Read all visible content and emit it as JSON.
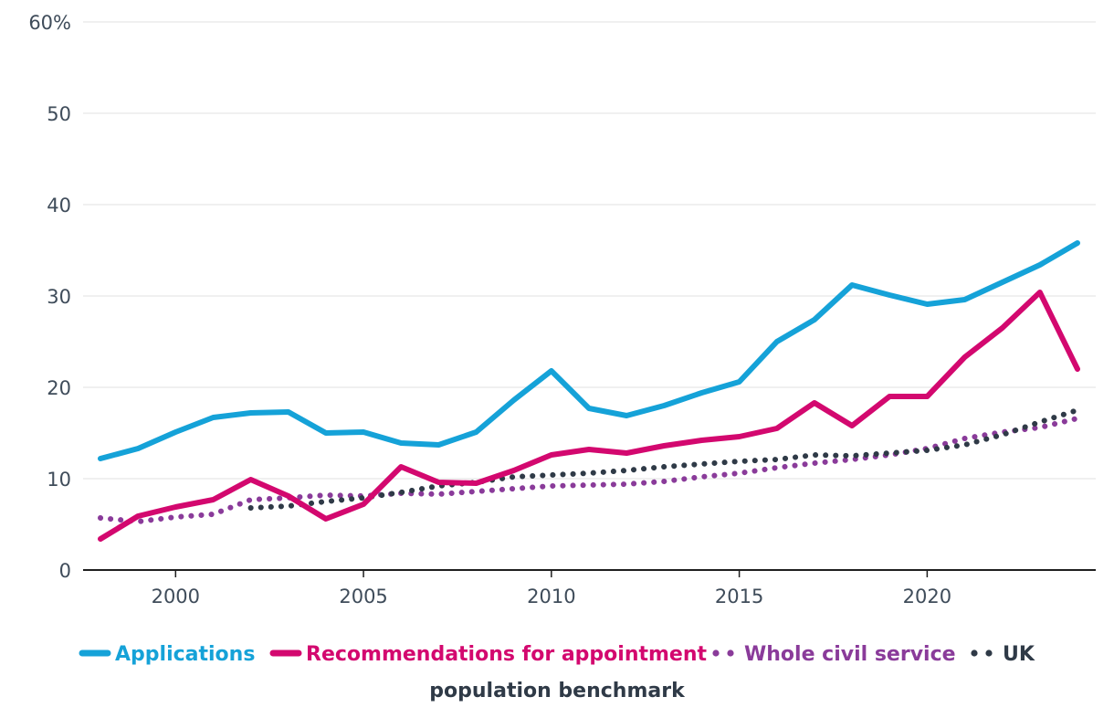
{
  "chart_data": {
    "type": "line",
    "title": "",
    "xlabel": "",
    "ylabel": "",
    "xlim": [
      1998,
      2024
    ],
    "ylim": [
      0,
      60
    ],
    "x_ticks": [
      2000,
      2005,
      2010,
      2015,
      2020
    ],
    "x_tick_labels": [
      "2000",
      "2005",
      "2010",
      "2015",
      "2020"
    ],
    "y_ticks": [
      0,
      10,
      20,
      30,
      40,
      50,
      60
    ],
    "y_tick_labels": [
      "0",
      "10",
      "20",
      "30",
      "40",
      "50",
      "60%"
    ],
    "grid": "horizontal",
    "legend_position": "bottom",
    "series": [
      {
        "name": "Applications",
        "style": "solid",
        "color": "#15a2d8",
        "x": [
          1998,
          1999,
          2000,
          2001,
          2002,
          2003,
          2004,
          2005,
          2006,
          2007,
          2008,
          2009,
          2010,
          2011,
          2012,
          2013,
          2014,
          2015,
          2016,
          2017,
          2018,
          2019,
          2020,
          2021,
          2022,
          2023,
          2024
        ],
        "values": [
          12.2,
          13.3,
          15.1,
          16.7,
          17.2,
          17.3,
          15.0,
          15.1,
          13.9,
          13.7,
          15.1,
          18.6,
          21.8,
          17.7,
          16.9,
          18.0,
          19.4,
          20.6,
          25.0,
          27.4,
          31.2,
          30.1,
          29.1,
          29.6,
          31.5,
          33.4,
          35.8
        ]
      },
      {
        "name": "Recommendations for appointment",
        "style": "solid",
        "color": "#d3086f",
        "x": [
          1998,
          1999,
          2000,
          2001,
          2002,
          2003,
          2004,
          2005,
          2006,
          2007,
          2008,
          2009,
          2010,
          2011,
          2012,
          2013,
          2014,
          2015,
          2016,
          2017,
          2018,
          2019,
          2020,
          2021,
          2022,
          2023,
          2024
        ],
        "values": [
          3.4,
          5.9,
          6.9,
          7.7,
          9.9,
          8.1,
          5.6,
          7.2,
          11.3,
          9.6,
          9.5,
          10.9,
          12.6,
          13.2,
          12.8,
          13.6,
          14.2,
          14.6,
          15.5,
          18.3,
          15.8,
          19.0,
          19.0,
          23.3,
          26.5,
          30.4,
          22.0
        ]
      },
      {
        "name": "Whole civil service",
        "style": "dotted",
        "color": "#8a3b9a",
        "x": [
          1998,
          1999,
          2000,
          2001,
          2002,
          2003,
          2004,
          2005,
          2006,
          2007,
          2008,
          2009,
          2010,
          2011,
          2012,
          2013,
          2014,
          2015,
          2016,
          2017,
          2018,
          2019,
          2020,
          2021,
          2022,
          2023,
          2024
        ],
        "values": [
          5.7,
          5.3,
          5.8,
          6.1,
          7.7,
          7.9,
          8.2,
          8.1,
          8.4,
          8.3,
          8.6,
          8.9,
          9.2,
          9.3,
          9.4,
          9.7,
          10.2,
          10.6,
          11.2,
          11.7,
          12.1,
          12.6,
          13.3,
          14.4,
          15.1,
          15.6,
          16.6
        ]
      },
      {
        "name": "UK population benchmark",
        "style": "dotted",
        "color": "#2f3a47",
        "x": [
          2002,
          2003,
          2004,
          2005,
          2006,
          2007,
          2008,
          2009,
          2010,
          2011,
          2012,
          2013,
          2014,
          2015,
          2016,
          2017,
          2018,
          2019,
          2020,
          2021,
          2022,
          2023,
          2024
        ],
        "values": [
          6.8,
          7.0,
          7.5,
          7.9,
          8.5,
          9.2,
          9.6,
          10.2,
          10.4,
          10.6,
          10.9,
          11.3,
          11.6,
          11.9,
          12.1,
          12.6,
          12.5,
          12.8,
          13.1,
          13.7,
          14.8,
          16.2,
          17.5
        ]
      }
    ]
  },
  "legend": {
    "line1": [
      {
        "label": "Applications",
        "color": "#15a2d8",
        "style": "solid"
      },
      {
        "label": "Recommendations for appointment",
        "color": "#d3086f",
        "style": "solid"
      },
      {
        "label": "Whole civil service",
        "color": "#8a3b9a",
        "style": "dotted"
      },
      {
        "label": "UK",
        "color": "#2f3a47",
        "style": "dotted"
      }
    ],
    "continuation": "population benchmark",
    "continuation_color": "#2f3a47"
  },
  "colors": {
    "grid": "#e6e6e6",
    "axis": "#1f1f1f",
    "tick_text": "#3f4c5a"
  }
}
